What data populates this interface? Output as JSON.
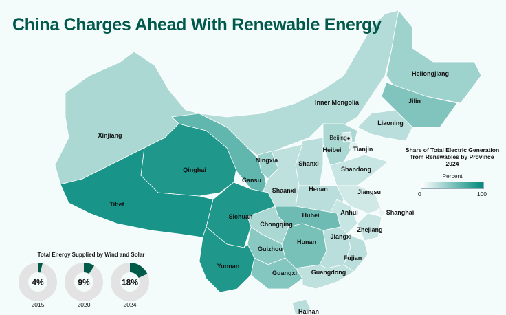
{
  "title": "China Charges Ahead With Renewable Energy",
  "legend": {
    "title_lines": [
      "Share of Total Electric Generation",
      "from Renewables by Province",
      "2024"
    ],
    "scale_label": "Percent",
    "min": "0",
    "max": "100",
    "color_low": "#ffffff",
    "color_high": "#00897b"
  },
  "provinces": [
    {
      "name": "Xinjiang",
      "value": 25
    },
    {
      "name": "Tibet",
      "value": 88
    },
    {
      "name": "Qinghai",
      "value": 85
    },
    {
      "name": "Gansu",
      "value": 55
    },
    {
      "name": "Inner Mongolia",
      "value": 22
    },
    {
      "name": "Heilongjiang",
      "value": 30
    },
    {
      "name": "Jilin",
      "value": 42
    },
    {
      "name": "Liaoning",
      "value": 20
    },
    {
      "name": "Heibei",
      "value": 25
    },
    {
      "name": "Beijing",
      "value": 10
    },
    {
      "name": "Tianjin",
      "value": 8
    },
    {
      "name": "Shanxi",
      "value": 20
    },
    {
      "name": "Shandong",
      "value": 15
    },
    {
      "name": "Ningxia",
      "value": 30
    },
    {
      "name": "Shaanxi",
      "value": 18
    },
    {
      "name": "Henan",
      "value": 20
    },
    {
      "name": "Jiangsu",
      "value": 12
    },
    {
      "name": "Anhui",
      "value": 15
    },
    {
      "name": "Shanghai",
      "value": 5
    },
    {
      "name": "Zhejiang",
      "value": 15
    },
    {
      "name": "Hubei",
      "value": 50
    },
    {
      "name": "Chongqing",
      "value": 25
    },
    {
      "name": "Sichuan",
      "value": 85
    },
    {
      "name": "Guizhou",
      "value": 38
    },
    {
      "name": "Yunnan",
      "value": 85
    },
    {
      "name": "Hunan",
      "value": 45
    },
    {
      "name": "Jiangxi",
      "value": 20
    },
    {
      "name": "Fujian",
      "value": 20
    },
    {
      "name": "Guangxi",
      "value": 40
    },
    {
      "name": "Guangdong",
      "value": 18
    },
    {
      "name": "Hainan",
      "value": 20
    }
  ],
  "wind_solar": {
    "title": "Total Energy Supplied by Wind and Solar",
    "color_share": "#005a4a",
    "color_rest": "#e3e3e3",
    "items": [
      {
        "year": "2015",
        "value": 4,
        "label": "4%"
      },
      {
        "year": "2020",
        "value": 9,
        "label": "9%"
      },
      {
        "year": "2024",
        "value": 18,
        "label": "18%"
      }
    ]
  }
}
